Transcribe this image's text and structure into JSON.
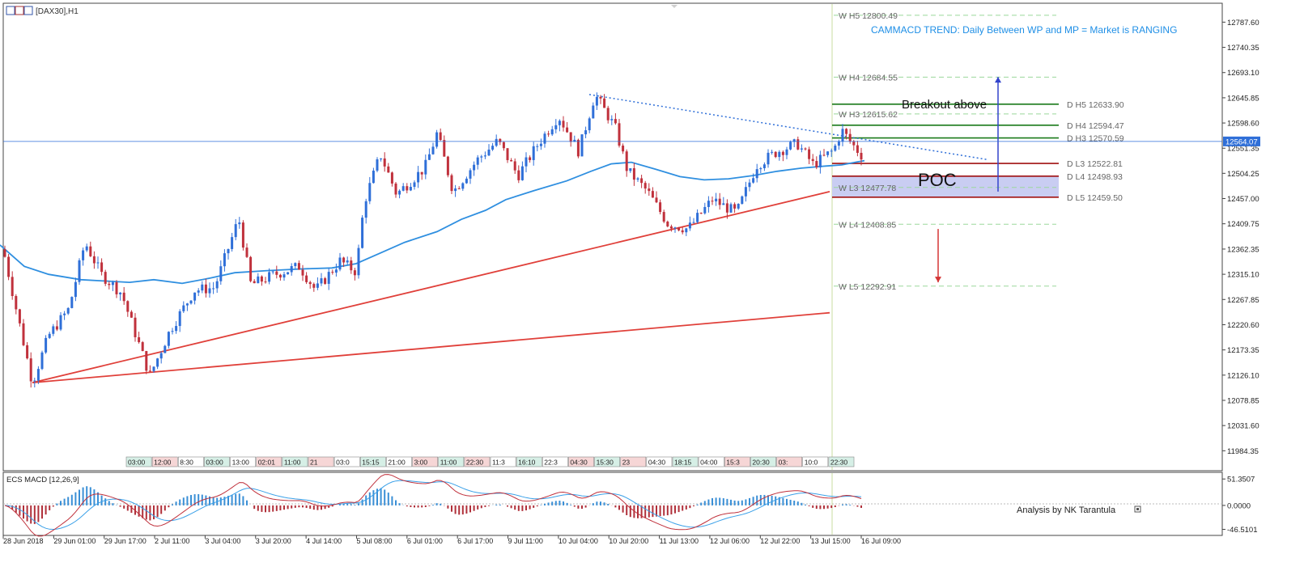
{
  "window": {
    "title": "[DAX30],H1"
  },
  "trend_text": "CAMMACD TREND: Daily Between WP and MP = Market is RANGING",
  "price_axis": {
    "ticks": [
      "12787.60",
      "12740.35",
      "12693.10",
      "12645.85",
      "12598.60",
      "12551.35",
      "12504.25",
      "12457.00",
      "12409.75",
      "12362.35",
      "12315.10",
      "12267.85",
      "12220.60",
      "12173.35",
      "12126.10",
      "12078.85",
      "12031.60",
      "11984.35"
    ],
    "current_price": "12564.07",
    "ylim": [
      11950,
      12820
    ]
  },
  "macd_axis": {
    "ticks": [
      "51.3507",
      "0.0000",
      "-46.5101"
    ],
    "ylim": [
      -52,
      58
    ]
  },
  "time_axis": [
    "28 Jun 2018",
    "29 Jun 01:00",
    "29 Jun 17:00",
    "2 Jul 11:00",
    "3 Jul 04:00",
    "3 Jul 20:00",
    "4 Jul 14:00",
    "5 Jul 08:00",
    "6 Jul 01:00",
    "6 Jul 17:00",
    "9 Jul 11:00",
    "10 Jul 04:00",
    "10 Jul 20:00",
    "11 Jul 13:00",
    "12 Jul 06:00",
    "12 Jul 22:00",
    "13 Jul 15:00",
    "16 Jul 09:00"
  ],
  "weekly_pivots": [
    {
      "label": "W  H5 12800.49",
      "value": 12800.49
    },
    {
      "label": "W  H4 12684.55",
      "value": 12684.55
    },
    {
      "label": "W  H3 12615.62",
      "value": 12615.62
    },
    {
      "label": "W  L3 12477.78",
      "value": 12477.78
    },
    {
      "label": "W  L4 12408.85",
      "value": 12408.85
    },
    {
      "label": "W  L5 12292.91",
      "value": 12292.91
    }
  ],
  "daily_pivots": [
    {
      "label": "D  H5 12633.90",
      "value": 12633.9,
      "color": "#1a7a1a"
    },
    {
      "label": "D  H4 12594.47",
      "value": 12594.47,
      "color": "#1a7a1a"
    },
    {
      "label": "D  H3 12570.59",
      "value": 12570.59,
      "color": "#1a7a1a"
    },
    {
      "label": "D  L3 12522.81",
      "value": 12522.81,
      "color": "#a01010"
    },
    {
      "label": "D  L4 12498.93",
      "value": 12498.93,
      "color": "#a01010"
    },
    {
      "label": "D  L5 12459.50",
      "value": 12459.5,
      "color": "#a01010"
    }
  ],
  "annotations": {
    "breakout": "Breakout above",
    "poc": "POC",
    "credit": "Analysis by NK Tarantula"
  },
  "macd_label": "ECS MACD [12,26,9]",
  "time_strip": [
    "03:00",
    "12:00",
    "8:30",
    "03:00",
    "13:00",
    "02:01",
    "11:00",
    "21",
    "03:0",
    "15:15",
    "21:00",
    "3:00",
    "11:00",
    "22:30",
    "11:3",
    "16:10",
    "22:3",
    "04:30",
    "15:30",
    "23",
    "04:30",
    "18:15",
    "04:00",
    "15:3",
    "20:30",
    "03:",
    "10:0",
    "22:30"
  ],
  "colors": {
    "bull": "#2f6fd8",
    "bear": "#c0313c",
    "ma": "#2f8fe0",
    "trend_red": "#e0403a",
    "pivot_green": "#1a7a1a",
    "pivot_red": "#a01010",
    "poc_fill": "#c9cdf2",
    "trend_text": "#1f8fe6"
  },
  "chart_data": {
    "type": "candlestick",
    "symbol": "[DAX30],H1",
    "ylim": [
      11950,
      12820
    ],
    "key_prices": {
      "high": 12652,
      "low": 12112,
      "last": 12564.07
    },
    "ma_points": [
      [
        0,
        12370
      ],
      [
        30,
        12330
      ],
      [
        60,
        12315
      ],
      [
        100,
        12305
      ],
      [
        160,
        12300
      ],
      [
        190,
        12305
      ],
      [
        225,
        12298
      ],
      [
        260,
        12308
      ],
      [
        290,
        12318
      ],
      [
        330,
        12322
      ],
      [
        370,
        12325
      ],
      [
        410,
        12327
      ],
      [
        440,
        12335
      ],
      [
        470,
        12355
      ],
      [
        500,
        12375
      ],
      [
        540,
        12395
      ],
      [
        570,
        12418
      ],
      [
        600,
        12435
      ],
      [
        625,
        12455
      ],
      [
        660,
        12472
      ],
      [
        700,
        12490
      ],
      [
        730,
        12508
      ],
      [
        755,
        12522
      ],
      [
        780,
        12525
      ],
      [
        810,
        12512
      ],
      [
        840,
        12498
      ],
      [
        870,
        12492
      ],
      [
        900,
        12494
      ],
      [
        930,
        12500
      ],
      [
        960,
        12508
      ],
      [
        990,
        12514
      ],
      [
        1020,
        12518
      ],
      [
        1040,
        12520
      ],
      [
        1060,
        12526
      ],
      [
        1068,
        12528
      ]
    ],
    "waypoints": [
      [
        0,
        12390
      ],
      [
        20,
        12250
      ],
      [
        40,
        12112
      ],
      [
        60,
        12200
      ],
      [
        85,
        12250
      ],
      [
        105,
        12375
      ],
      [
        125,
        12315
      ],
      [
        150,
        12280
      ],
      [
        185,
        12125
      ],
      [
        210,
        12210
      ],
      [
        240,
        12285
      ],
      [
        265,
        12290
      ],
      [
        295,
        12420
      ],
      [
        310,
        12295
      ],
      [
        340,
        12315
      ],
      [
        370,
        12330
      ],
      [
        390,
        12285
      ],
      [
        420,
        12340
      ],
      [
        440,
        12320
      ],
      [
        450,
        12450
      ],
      [
        470,
        12540
      ],
      [
        490,
        12465
      ],
      [
        525,
        12515
      ],
      [
        540,
        12580
      ],
      [
        560,
        12470
      ],
      [
        590,
        12530
      ],
      [
        615,
        12565
      ],
      [
        640,
        12500
      ],
      [
        665,
        12560
      ],
      [
        690,
        12612
      ],
      [
        715,
        12545
      ],
      [
        735,
        12652
      ],
      [
        760,
        12590
      ],
      [
        775,
        12510
      ],
      [
        800,
        12470
      ],
      [
        825,
        12410
      ],
      [
        850,
        12400
      ],
      [
        880,
        12455
      ],
      [
        910,
        12430
      ],
      [
        935,
        12520
      ],
      [
        960,
        12545
      ],
      [
        985,
        12560
      ],
      [
        1005,
        12520
      ],
      [
        1030,
        12548
      ],
      [
        1040,
        12585
      ],
      [
        1055,
        12555
      ],
      [
        1068,
        12532
      ]
    ],
    "trendlines": [
      {
        "name": "rising support",
        "from": [
          40,
          12112
        ],
        "to": [
          1025,
          12470
        ]
      },
      {
        "name": "lower support",
        "from": [
          40,
          12112
        ],
        "to": [
          1025,
          12243
        ]
      },
      {
        "name": "falling resistance",
        "from": [
          728,
          12652
        ],
        "to": [
          1220,
          12530
        ]
      }
    ]
  }
}
